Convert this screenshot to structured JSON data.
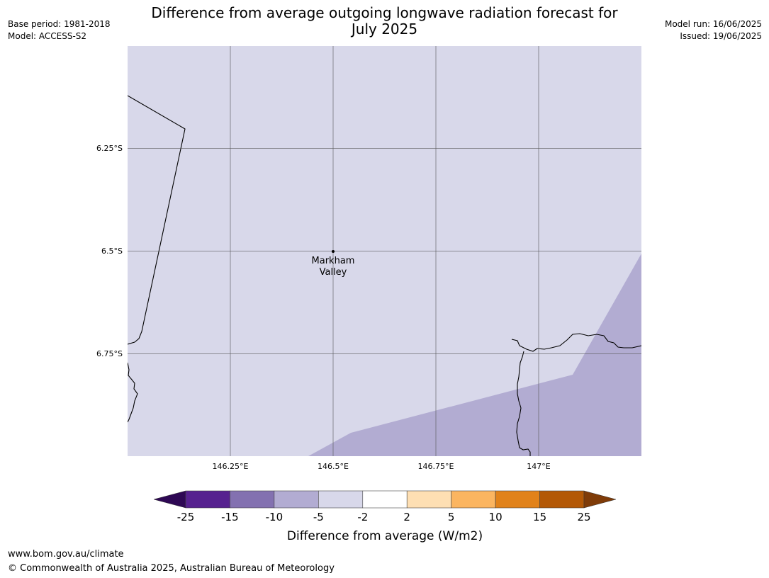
{
  "header": {
    "title_line1": "Difference from average outgoing longwave radiation forecast for",
    "title_line2": "July 2025",
    "base_period": "Base period: 1981-2018",
    "model": "Model: ACCESS-S2",
    "model_run": "Model run: 16/06/2025",
    "issued": "Issued: 19/06/2025"
  },
  "map": {
    "lon_ticks": [
      {
        "value": 146.25,
        "label": "146.25°E"
      },
      {
        "value": 146.5,
        "label": "146.5°E"
      },
      {
        "value": 146.75,
        "label": "146.75°E"
      },
      {
        "value": 147.0,
        "label": "147°E"
      }
    ],
    "lat_ticks": [
      {
        "value": -6.25,
        "label": "6.25°S"
      },
      {
        "value": -6.5,
        "label": "6.5°S"
      },
      {
        "value": -6.75,
        "label": "6.75°S"
      }
    ],
    "location": {
      "name_line1": "Markham",
      "name_line2": "Valley",
      "lon": 146.5,
      "lat": -6.5
    },
    "background_color": "#d8d8ea",
    "anomaly_color": "#b2acd2"
  },
  "colorbar": {
    "label": "Difference from average (W/m2)",
    "ticks": [
      "-25",
      "-15",
      "-10",
      "-5",
      "-2",
      "2",
      "5",
      "10",
      "15",
      "25"
    ],
    "colors": [
      "#56218f",
      "#8371b0",
      "#b2acd2",
      "#d8d8ea",
      "#ffffff",
      "#fedfb3",
      "#fbb560",
      "#e1821a",
      "#b35806"
    ],
    "under_color": "#2e0854",
    "over_color": "#7f3b08"
  },
  "footer": {
    "url": "www.bom.gov.au/climate",
    "copyright": "© Commonwealth of Australia 2025, Australian Bureau of Meteorology"
  }
}
